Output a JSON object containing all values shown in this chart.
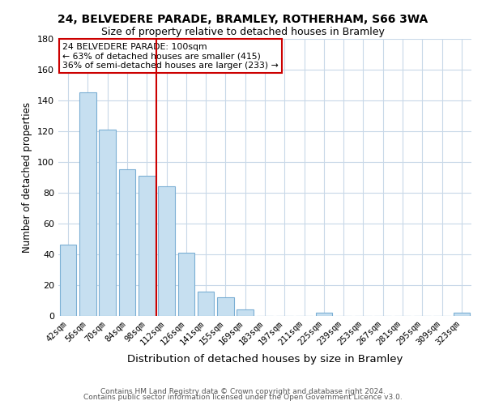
{
  "title": "24, BELVEDERE PARADE, BRAMLEY, ROTHERHAM, S66 3WA",
  "subtitle": "Size of property relative to detached houses in Bramley",
  "xlabel": "Distribution of detached houses by size in Bramley",
  "ylabel": "Number of detached properties",
  "bar_labels": [
    "42sqm",
    "56sqm",
    "70sqm",
    "84sqm",
    "98sqm",
    "112sqm",
    "126sqm",
    "141sqm",
    "155sqm",
    "169sqm",
    "183sqm",
    "197sqm",
    "211sqm",
    "225sqm",
    "239sqm",
    "253sqm",
    "267sqm",
    "281sqm",
    "295sqm",
    "309sqm",
    "323sqm"
  ],
  "bar_values": [
    46,
    145,
    121,
    95,
    91,
    84,
    41,
    16,
    12,
    4,
    0,
    0,
    0,
    2,
    0,
    0,
    0,
    0,
    0,
    0,
    2
  ],
  "bar_color": "#c6dff0",
  "bar_edge_color": "#7bafd4",
  "ylim": [
    0,
    180
  ],
  "yticks": [
    0,
    20,
    40,
    60,
    80,
    100,
    120,
    140,
    160,
    180
  ],
  "vline_x_index": 4,
  "vline_color": "#cc0000",
  "annotation_title": "24 BELVEDERE PARADE: 100sqm",
  "annotation_line1": "← 63% of detached houses are smaller (415)",
  "annotation_line2": "36% of semi-detached houses are larger (233) →",
  "annotation_box_color": "#ffffff",
  "annotation_box_edge": "#cc0000",
  "footer1": "Contains HM Land Registry data © Crown copyright and database right 2024.",
  "footer2": "Contains public sector information licensed under the Open Government Licence v3.0.",
  "background_color": "#ffffff",
  "grid_color": "#c8d8e8"
}
